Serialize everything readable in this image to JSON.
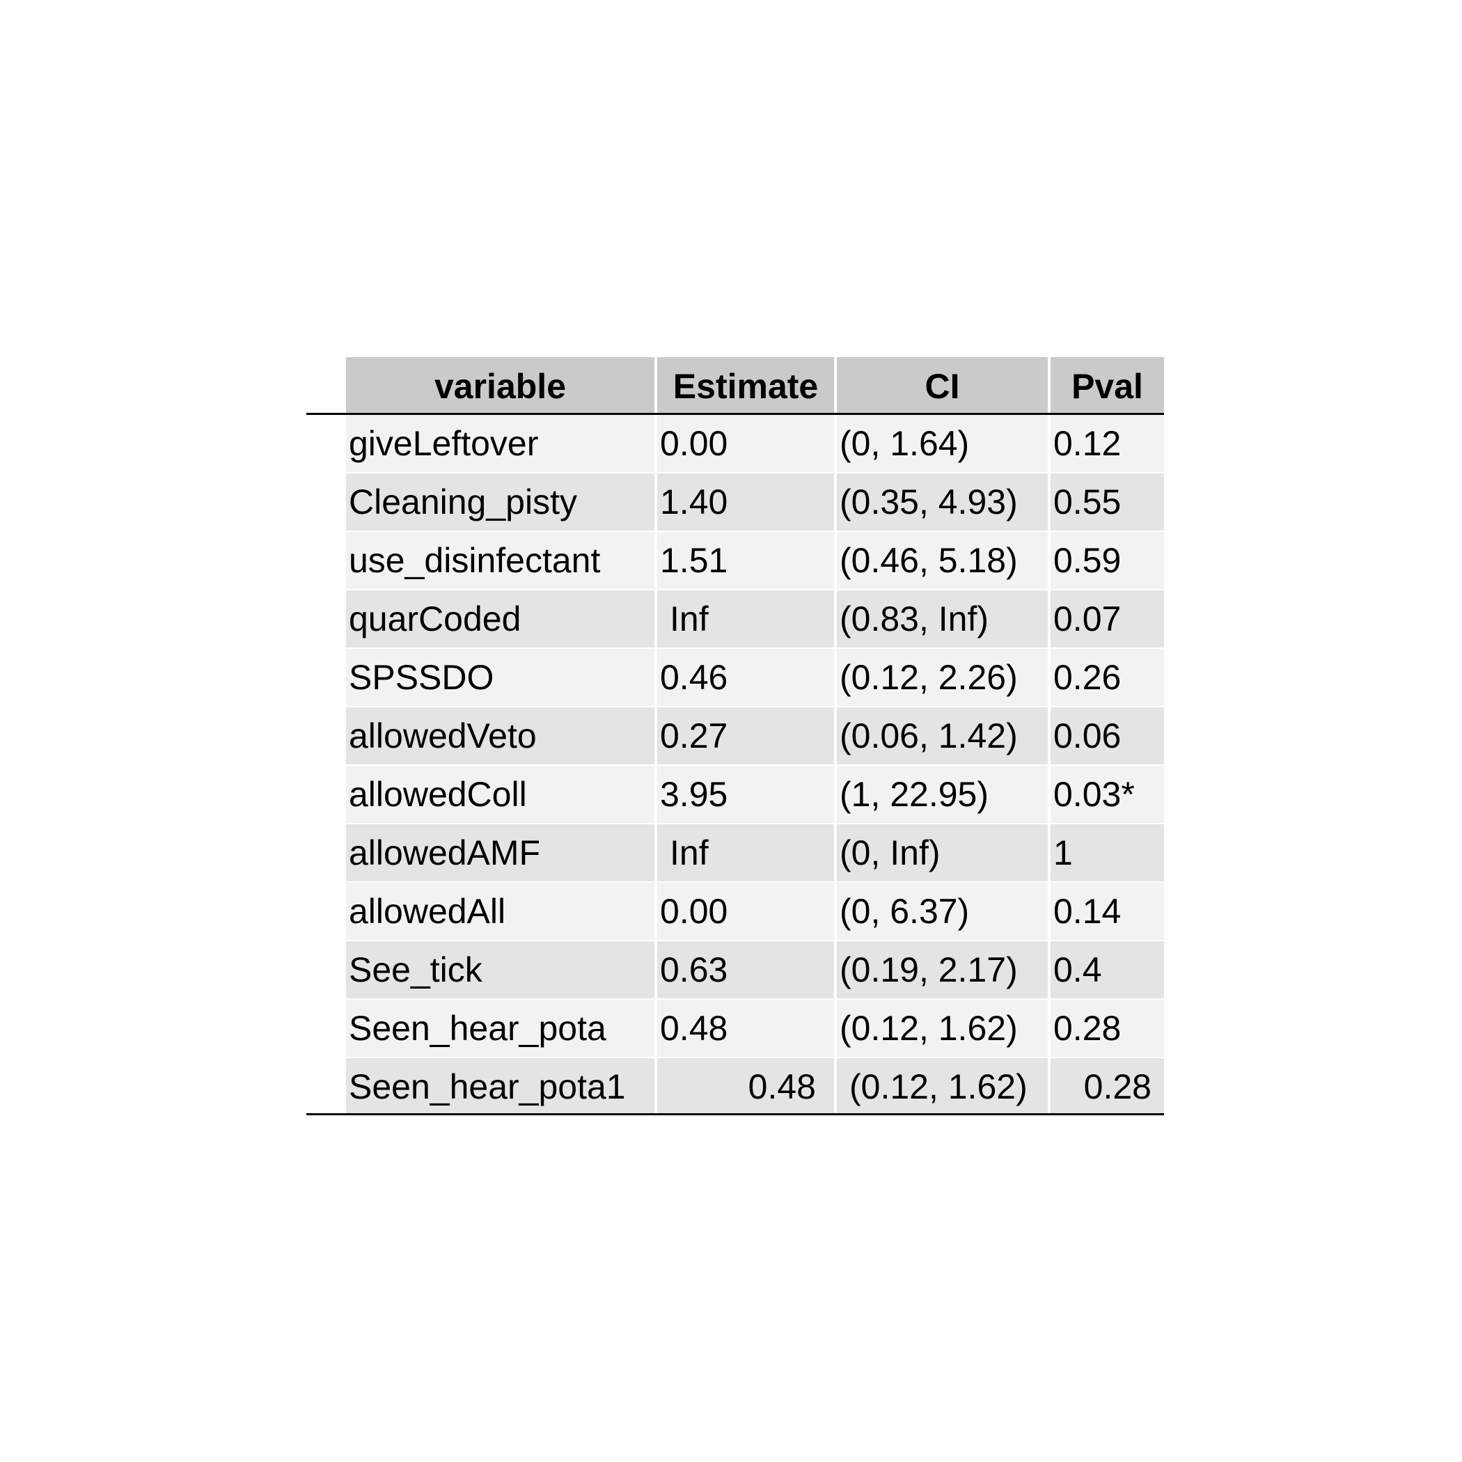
{
  "chart_data": {
    "type": "table",
    "columns": [
      "variable",
      "Estimate",
      "CI",
      "Pval"
    ],
    "rows": [
      {
        "variable": "giveLeftover",
        "Estimate": "0.00",
        "CI": "(0, 1.64)",
        "Pval": "0.12"
      },
      {
        "variable": "Cleaning_pisty",
        "Estimate": "1.40",
        "CI": "(0.35, 4.93)",
        "Pval": "0.55"
      },
      {
        "variable": "use_disinfectant",
        "Estimate": "1.51",
        "CI": "(0.46, 5.18)",
        "Pval": "0.59"
      },
      {
        "variable": "quarCoded",
        "Estimate": "Inf",
        "CI": "(0.83, Inf)",
        "Pval": "0.07"
      },
      {
        "variable": "SPSSDO",
        "Estimate": "0.46",
        "CI": "(0.12, 2.26)",
        "Pval": "0.26"
      },
      {
        "variable": "allowedVeto",
        "Estimate": "0.27",
        "CI": "(0.06, 1.42)",
        "Pval": "0.06"
      },
      {
        "variable": "allowedColl",
        "Estimate": "3.95",
        "CI": "(1, 22.95)",
        "Pval": "0.03*"
      },
      {
        "variable": "allowedAMF",
        "Estimate": "Inf",
        "CI": "(0, Inf)",
        "Pval": "1"
      },
      {
        "variable": "allowedAll",
        "Estimate": "0.00",
        "CI": "(0, 6.37)",
        "Pval": "0.14"
      },
      {
        "variable": "See_tick",
        "Estimate": "0.63",
        "CI": "(0.19, 2.17)",
        "Pval": "0.4"
      },
      {
        "variable": "Seen_hear_pota",
        "Estimate": "0.48",
        "CI": "(0.12, 1.62)",
        "Pval": "0.28"
      },
      {
        "variable": "Seen_hear_pota1",
        "Estimate": "0.48",
        "CI": "(0.12, 1.62)",
        "Pval": "0.28"
      }
    ],
    "colors": {
      "header_bg": "#cacaca",
      "row_light": "#f2f2f2",
      "row_dark": "#e4e4e4"
    }
  }
}
